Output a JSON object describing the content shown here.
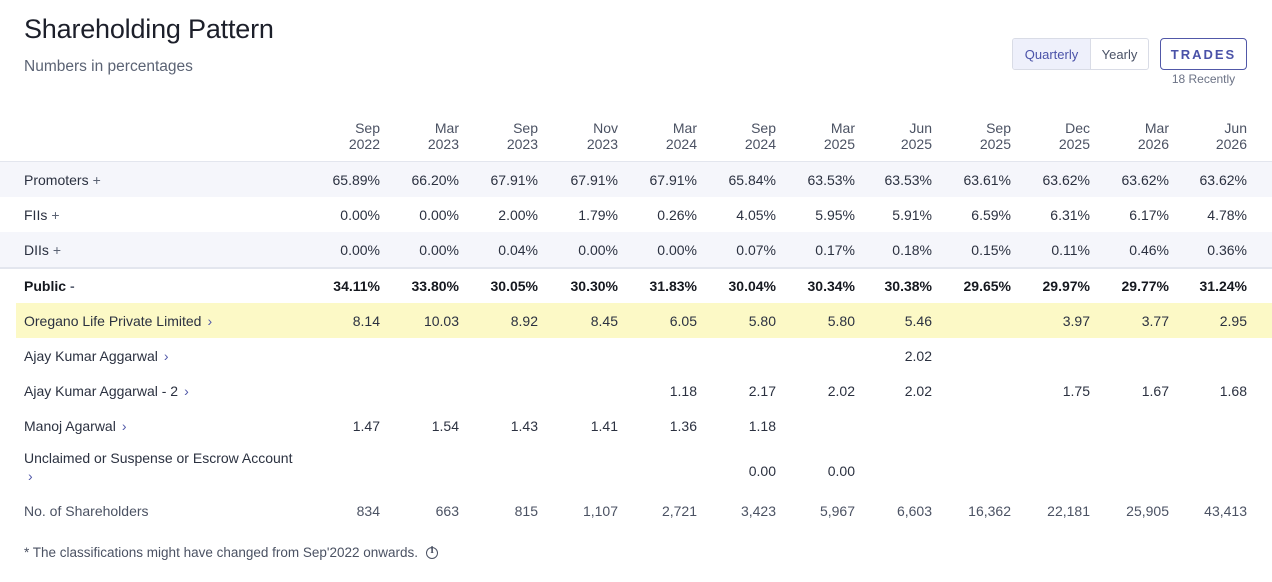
{
  "header": {
    "title": "Shareholding Pattern",
    "subtitle": "Numbers in percentages"
  },
  "toggle": {
    "quarterly": "Quarterly",
    "yearly": "Yearly",
    "selected": "Quarterly"
  },
  "trades": {
    "label": "TRADES",
    "note": "18 Recently"
  },
  "columns": [
    {
      "month": "Sep",
      "year": "2022"
    },
    {
      "month": "Mar",
      "year": "2023"
    },
    {
      "month": "Sep",
      "year": "2023"
    },
    {
      "month": "Nov",
      "year": "2023"
    },
    {
      "month": "Mar",
      "year": "2024"
    },
    {
      "month": "Sep",
      "year": "2024"
    },
    {
      "month": "Mar",
      "year": "2025"
    },
    {
      "month": "Jun",
      "year": "2025"
    },
    {
      "month": "Sep",
      "year": "2025"
    },
    {
      "month": "Dec",
      "year": "2025"
    },
    {
      "month": "Mar",
      "year": "2026"
    },
    {
      "month": "Jun",
      "year": "2026"
    }
  ],
  "rows": [
    {
      "label": "Promoters",
      "suffix": "+",
      "values": [
        "65.89%",
        "66.20%",
        "67.91%",
        "67.91%",
        "67.91%",
        "65.84%",
        "63.53%",
        "63.53%",
        "63.61%",
        "63.62%",
        "63.62%",
        "63.62%"
      ]
    },
    {
      "label": "FIIs",
      "suffix": "+",
      "values": [
        "0.00%",
        "0.00%",
        "2.00%",
        "1.79%",
        "0.26%",
        "4.05%",
        "5.95%",
        "5.91%",
        "6.59%",
        "6.31%",
        "6.17%",
        "4.78%"
      ]
    },
    {
      "label": "DIIs",
      "suffix": "+",
      "values": [
        "0.00%",
        "0.00%",
        "0.04%",
        "0.00%",
        "0.00%",
        "0.07%",
        "0.17%",
        "0.18%",
        "0.15%",
        "0.11%",
        "0.46%",
        "0.36%"
      ]
    },
    {
      "label": "Public",
      "suffix": "-",
      "values": [
        "34.11%",
        "33.80%",
        "30.05%",
        "30.30%",
        "31.83%",
        "30.04%",
        "30.34%",
        "30.38%",
        "29.65%",
        "29.97%",
        "29.77%",
        "31.24%"
      ]
    },
    {
      "label": "Oregano Life Private Limited",
      "suffix": "›",
      "values": [
        "8.14",
        "10.03",
        "8.92",
        "8.45",
        "6.05",
        "5.80",
        "5.80",
        "5.46",
        "",
        "3.97",
        "3.77",
        "2.95"
      ]
    },
    {
      "label": "Ajay Kumar Aggarwal",
      "suffix": "›",
      "values": [
        "",
        "",
        "",
        "",
        "",
        "",
        "",
        "2.02",
        "",
        "",
        "",
        ""
      ]
    },
    {
      "label": "Ajay Kumar Aggarwal - 2",
      "suffix": "›",
      "values": [
        "",
        "",
        "",
        "",
        "1.18",
        "2.17",
        "2.02",
        "2.02",
        "",
        "1.75",
        "1.67",
        "1.68"
      ]
    },
    {
      "label": "Manoj Agarwal",
      "suffix": "›",
      "values": [
        "1.47",
        "1.54",
        "1.43",
        "1.41",
        "1.36",
        "1.18",
        "",
        "",
        "",
        "",
        "",
        ""
      ]
    },
    {
      "label": "Unclaimed or Suspense or Escrow Account",
      "suffix": "›",
      "values": [
        "",
        "",
        "",
        "",
        "",
        "0.00",
        "0.00",
        "",
        "",
        "",
        "",
        ""
      ]
    },
    {
      "label": "No. of Shareholders",
      "suffix": "",
      "values": [
        "834",
        "663",
        "815",
        "1,107",
        "2,721",
        "3,423",
        "5,967",
        "6,603",
        "16,362",
        "22,181",
        "25,905",
        "43,413"
      ]
    }
  ],
  "footnote": "* The classifications might have changed from Sep'2022 onwards.",
  "icons": {
    "info": "info-icon",
    "expand": "plus-icon",
    "collapse": "minus-icon",
    "navigate": "chevron-right-icon"
  },
  "colors": {
    "accent": "#4a52a8",
    "highlight": "#fcf9c6",
    "shade": "#f5f6fb"
  }
}
